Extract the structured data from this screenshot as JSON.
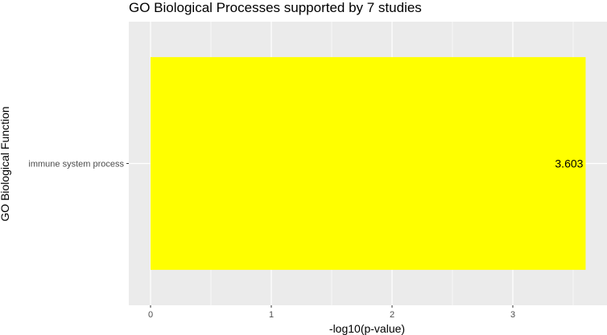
{
  "chart_data": {
    "type": "bar",
    "orientation": "horizontal",
    "title": "GO Biological Processes supported by 7 studies",
    "xlabel": "-log10(p-value)",
    "ylabel": "GO Biological Function",
    "categories": [
      "immune system process"
    ],
    "values": [
      3.603
    ],
    "data_labels": [
      "3.603"
    ],
    "xlim": [
      -0.18,
      3.78
    ],
    "xticks": [
      0,
      1,
      2,
      3
    ],
    "xtick_labels": [
      "0",
      "1",
      "2",
      "3"
    ],
    "grid": true,
    "legend": "none",
    "colors": {
      "bar": "#ffff00",
      "panel_background": "#ebebeb",
      "grid": "#ffffff"
    }
  }
}
